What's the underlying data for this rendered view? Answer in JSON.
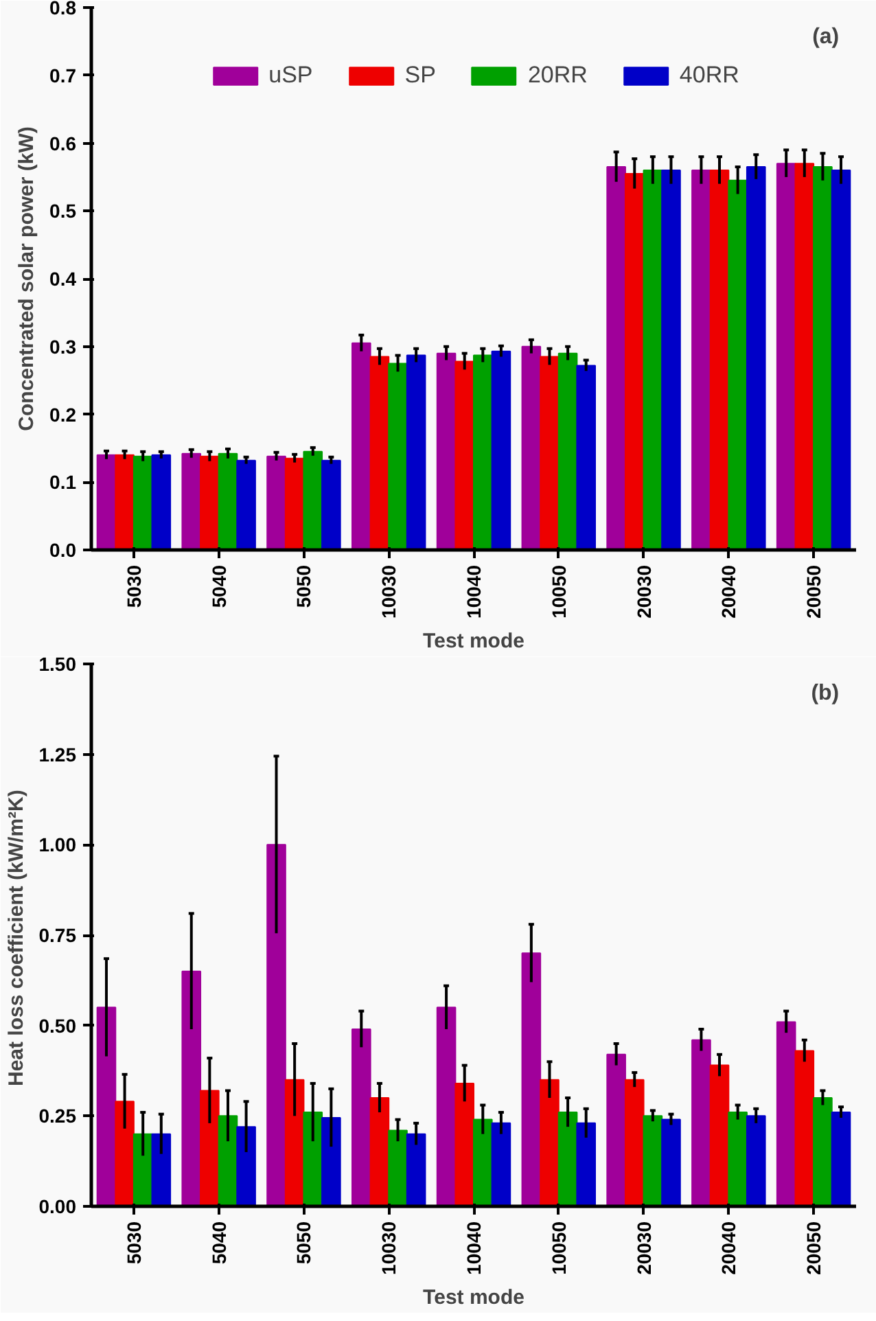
{
  "chart_data": [
    {
      "type": "bar",
      "categories": [
        "5030",
        "5040",
        "5050",
        "10030",
        "10040",
        "10050",
        "20030",
        "20040",
        "20050"
      ],
      "xlabel": "Test mode",
      "ylabel": "Concentrated solar power (kW)",
      "annotations": [
        "(a)"
      ],
      "ylim": [
        0,
        0.8
      ],
      "yticks": [
        {
          "value": 0,
          "label": "0.0"
        },
        0.1,
        0.2,
        0.3,
        0.4,
        0.5,
        0.6,
        0.7,
        0.8
      ],
      "grid": false,
      "legend": "top",
      "series": [
        {
          "name": "uSP",
          "color": "#a0009a",
          "values": [
            0.14,
            0.142,
            0.138,
            0.305,
            0.29,
            0.3,
            0.565,
            0.56,
            0.57
          ],
          "errors": [
            0.006,
            0.006,
            0.006,
            0.012,
            0.01,
            0.01,
            0.022,
            0.02,
            0.02
          ]
        },
        {
          "name": "SP",
          "color": "#ee0000",
          "values": [
            0.14,
            0.138,
            0.135,
            0.285,
            0.278,
            0.285,
            0.555,
            0.56,
            0.57
          ],
          "errors": [
            0.006,
            0.007,
            0.006,
            0.012,
            0.012,
            0.012,
            0.022,
            0.02,
            0.02
          ]
        },
        {
          "name": "20RR",
          "color": "#00a000",
          "values": [
            0.138,
            0.142,
            0.145,
            0.275,
            0.287,
            0.29,
            0.56,
            0.545,
            0.565
          ],
          "errors": [
            0.007,
            0.007,
            0.006,
            0.012,
            0.01,
            0.01,
            0.02,
            0.02,
            0.02
          ]
        },
        {
          "name": "40RR",
          "color": "#0000c8",
          "values": [
            0.14,
            0.132,
            0.132,
            0.287,
            0.293,
            0.272,
            0.56,
            0.565,
            0.56
          ],
          "errors": [
            0.005,
            0.005,
            0.005,
            0.01,
            0.008,
            0.008,
            0.02,
            0.018,
            0.02
          ]
        }
      ]
    },
    {
      "type": "bar",
      "categories": [
        "5030",
        "5040",
        "5050",
        "10030",
        "10040",
        "10050",
        "20030",
        "20040",
        "20050"
      ],
      "xlabel": "Test mode",
      "ylabel": "Heat loss coefficient  (kW/m²K)",
      "annotations": [
        "(b)"
      ],
      "ylim": [
        0,
        1.5
      ],
      "yticks": [
        {
          "value": 0,
          "label": "0.00"
        },
        0.25,
        {
          "value": 0.5,
          "label": "0.50"
        },
        0.75,
        {
          "value": 1,
          "label": "1.00"
        },
        1.25,
        {
          "value": 1.5,
          "label": "1.50"
        }
      ],
      "grid": false,
      "series": [
        {
          "color": "#a0009a",
          "values": [
            0.55,
            0.65,
            1.0,
            0.49,
            0.55,
            0.7,
            0.42,
            0.46,
            0.51
          ],
          "errors": [
            0.135,
            0.16,
            0.245,
            0.05,
            0.06,
            0.08,
            0.03,
            0.03,
            0.03
          ]
        },
        {
          "color": "#ee0000",
          "values": [
            0.29,
            0.32,
            0.35,
            0.3,
            0.34,
            0.35,
            0.35,
            0.39,
            0.43
          ],
          "errors": [
            0.075,
            0.09,
            0.1,
            0.04,
            0.05,
            0.05,
            0.02,
            0.03,
            0.03
          ]
        },
        {
          "color": "#00a000",
          "values": [
            0.2,
            0.25,
            0.26,
            0.21,
            0.24,
            0.26,
            0.25,
            0.26,
            0.3
          ],
          "errors": [
            0.06,
            0.07,
            0.08,
            0.03,
            0.04,
            0.04,
            0.015,
            0.02,
            0.02
          ]
        },
        {
          "color": "#0000c8",
          "values": [
            0.2,
            0.22,
            0.245,
            0.2,
            0.23,
            0.23,
            0.24,
            0.25,
            0.26
          ],
          "errors": [
            0.055,
            0.07,
            0.08,
            0.03,
            0.03,
            0.04,
            0.015,
            0.02,
            0.015
          ]
        }
      ]
    }
  ]
}
